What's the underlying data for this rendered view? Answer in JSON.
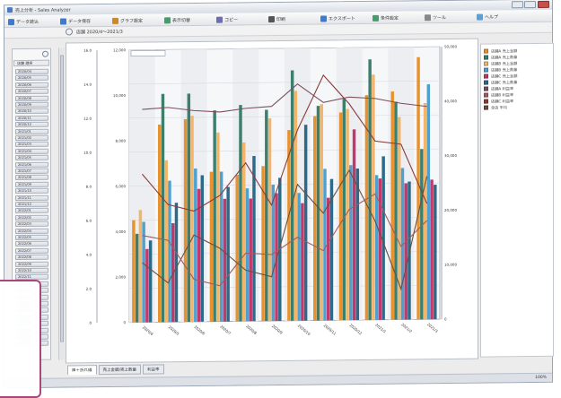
{
  "window": {
    "title": "売上分析 - Sales Analyzer",
    "status_zoom": "100%"
  },
  "toolbar": {
    "items": [
      {
        "label": "データ読込",
        "icon": "open-data-icon",
        "color": "#3d7bd1"
      },
      {
        "label": "データ保存",
        "icon": "save-icon",
        "color": "#3d7bd1"
      },
      {
        "label": "グラフ設定",
        "icon": "chart-settings-icon",
        "color": "#c98a2e"
      },
      {
        "label": "表示切替",
        "icon": "view-toggle-icon",
        "color": "#3fa06a"
      },
      {
        "label": "コピー",
        "icon": "copy-icon",
        "color": "#6a6fb3"
      },
      {
        "label": "印刷",
        "icon": "print-icon",
        "color": "#555555"
      },
      {
        "label": "エクスポート",
        "icon": "export-icon",
        "color": "#3d7bd1"
      },
      {
        "label": "条件設定",
        "icon": "filter-icon",
        "color": "#3fa06a"
      },
      {
        "label": "ツール",
        "icon": "tools-icon",
        "color": "#888888"
      },
      {
        "label": "ヘルプ",
        "icon": "help-icon",
        "color": "#5aa0d8"
      }
    ]
  },
  "filter": {
    "label": "店舗 2020/4～2021/3"
  },
  "left_panel": {
    "header": "店舗 選択",
    "items": [
      "2020/04",
      "2020/05",
      "2020/06",
      "2020/07",
      "2020/08",
      "2020/09",
      "2020/10",
      "2020/11",
      "2020/12",
      "2021/01",
      "2021/02",
      "2021/03",
      "2021/04",
      "2021/05",
      "2021/06",
      "2021/07",
      "2021/08",
      "2021/09",
      "2021/10",
      "2021/11",
      "2021/12",
      "2022/01",
      "2022/02",
      "2022/03",
      "2022/04",
      "2022/05",
      "2022/06",
      "2022/07",
      "2022/08",
      "2022/09",
      "2022/10",
      "2022/11",
      "2022/12",
      "2023/01",
      "2023/02",
      "2023/03",
      "2023/04",
      "2023/05",
      "2023/06",
      "2023/07",
      "2023/08",
      "2023/09"
    ]
  },
  "tabs": [
    {
      "label": "棒＋折れ線",
      "active": true
    },
    {
      "label": "売上金額/売上数量",
      "active": false
    },
    {
      "label": "利益率",
      "active": false
    }
  ],
  "legend": {
    "items": [
      {
        "label": "店舗A 売上金額",
        "color": "#e8922e"
      },
      {
        "label": "店舗A 売上数量",
        "color": "#3c7f6c"
      },
      {
        "label": "店舗B 売上金額",
        "color": "#f2b56a"
      },
      {
        "label": "店舗B 売上数量",
        "color": "#4f9fcf"
      },
      {
        "label": "店舗C 売上金額",
        "color": "#c2386a"
      },
      {
        "label": "店舗C 売上数量",
        "color": "#2d6a8a"
      },
      {
        "label": "店舗A 利益率",
        "color": "#7a4f5c"
      },
      {
        "label": "店舗B 利益率",
        "color": "#a15d5d"
      },
      {
        "label": "店舗C 利益率",
        "color": "#8a3b3b"
      },
      {
        "label": "全店 平均",
        "color": "#6b4f3f"
      }
    ]
  },
  "chart_data": {
    "type": "bar",
    "title": "",
    "categories": [
      "2020/4",
      "2020/5",
      "2020/6",
      "2020/7",
      "2020/8",
      "2020/9",
      "2020/10",
      "2020/11",
      "2020/12",
      "2021/1",
      "2021/2",
      "2021/3"
    ],
    "ylim": [
      0,
      16
    ],
    "y_ticks_left": [
      "0",
      "2.0",
      "4.0",
      "6.0",
      "8.0",
      "10.0",
      "12.0",
      "14.0",
      "16.0"
    ],
    "y_ticks_mid": [
      "0",
      "2,000",
      "4,000",
      "6,000",
      "8,000",
      "10,000",
      "12,000"
    ],
    "y_ticks_right": [
      "0",
      "10,000",
      "20,000",
      "30,000",
      "40,000",
      "50,000"
    ],
    "series": [
      {
        "values": [
          6.0,
          11.6,
          11.9,
          8.8,
          8.6,
          9.1,
          11.2,
          12.0,
          12.2,
          13.2,
          13.4,
          15.4
        ],
        "color": "#e8922e"
      },
      {
        "values": [
          5.2,
          13.4,
          13.4,
          12.4,
          12.7,
          12.4,
          14.7,
          12.6,
          13.0,
          15.3,
          12.8,
          10.0
        ],
        "color": "#3c7f6c"
      },
      {
        "values": [
          6.6,
          9.5,
          12.1,
          11.1,
          10.5,
          11.9,
          13.5,
          12.7,
          12.4,
          14.4,
          11.9,
          12.7
        ],
        "color": "#f2b56a"
      },
      {
        "values": [
          5.9,
          8.3,
          9.0,
          8.8,
          7.8,
          8.0,
          7.5,
          8.9,
          9.1,
          8.5,
          8.9,
          13.8
        ],
        "color": "#4f9fcf"
      },
      {
        "values": [
          4.3,
          5.8,
          7.8,
          7.2,
          7.2,
          7.5,
          6.9,
          7.2,
          11.2,
          8.3,
          8.0,
          8.2
        ],
        "color": "#c2386a"
      },
      {
        "values": [
          4.8,
          7.0,
          8.6,
          7.9,
          9.7,
          8.4,
          11.5,
          8.3,
          8.9,
          9.6,
          8.1,
          7.9
        ],
        "color": "#2d6a8a"
      }
    ],
    "lines": [
      {
        "values": [
          12.5,
          12.6,
          12.4,
          12.3,
          12.5,
          12.6,
          13.9,
          12.8,
          13.1,
          13.0,
          12.7,
          12.5
        ],
        "color": "#7a4f5c"
      },
      {
        "values": [
          8.7,
          6.9,
          6.5,
          7.4,
          9.3,
          6.8,
          11.2,
          14.4,
          12.7,
          10.5,
          10.3,
          6.8
        ],
        "color": "#8a3b3b"
      },
      {
        "values": [
          3.5,
          2.3,
          5.1,
          4.3,
          3.0,
          2.6,
          8.0,
          6.3,
          8.8,
          5.8,
          1.8,
          8.4
        ],
        "color": "#6b4f3f"
      },
      {
        "values": [
          5.1,
          4.8,
          2.5,
          2.1,
          4.0,
          3.9,
          4.9,
          4.1,
          6.5,
          7.4,
          4.3,
          5.8
        ],
        "color": "#a15d5d"
      }
    ]
  }
}
